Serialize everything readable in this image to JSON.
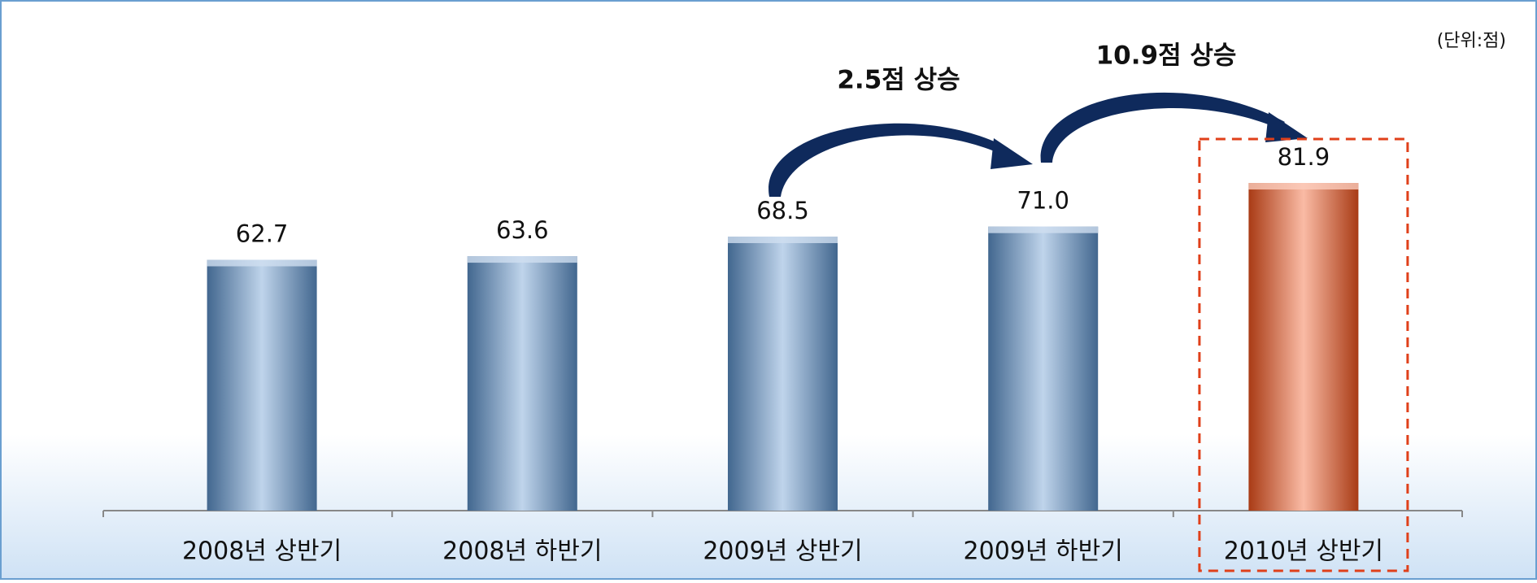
{
  "chart_data": {
    "type": "bar",
    "categories": [
      "2008년 상반기",
      "2008년 하반기",
      "2009년 상반기",
      "2009년 하반기",
      "2010년 상반기"
    ],
    "values": [
      62.7,
      63.6,
      68.5,
      71.0,
      81.9
    ],
    "value_labels": [
      "62.7",
      "63.6",
      "68.5",
      "71.0",
      "81.9"
    ],
    "colors": [
      "#5e93cc",
      "#5e93cc",
      "#5e93cc",
      "#5e93cc",
      "#f2541e"
    ],
    "ylim": [
      0,
      100
    ],
    "highlight": 4,
    "unit_label": "(단위:점)",
    "annotations": [
      "2.5점 상승",
      "10.9점 상승"
    ]
  }
}
